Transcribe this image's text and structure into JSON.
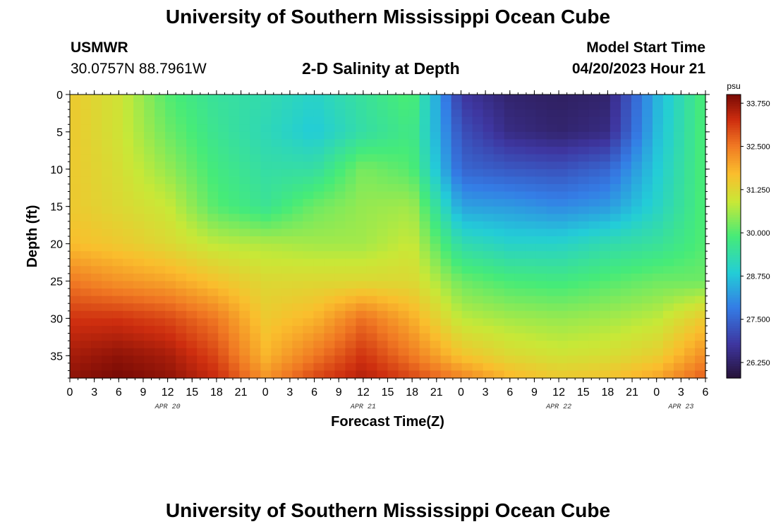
{
  "header": {
    "title": "University of Southern Mississippi Ocean Cube",
    "station": "USMWR",
    "coords": "30.0757N  88.7961W",
    "subtitle": "2-D Salinity at Depth",
    "model_label": "Model Start Time",
    "model_time": "04/20/2023 Hour 21"
  },
  "footer": {
    "title": "University of Southern Mississippi Ocean Cube"
  },
  "chart_data": {
    "type": "heatmap",
    "title": "2-D Salinity at Depth",
    "xlabel": "Forecast Time(Z)",
    "ylabel": "Depth (ft)",
    "colorbar_unit": "psu",
    "colorbar_ticks": [
      "33.750",
      "32.500",
      "31.250",
      "30.000",
      "28.750",
      "27.500",
      "26.250"
    ],
    "clim": [
      25.8,
      34.0
    ],
    "xlim_hours": [
      0,
      78
    ],
    "ylim": [
      0,
      38
    ],
    "x_tick_labels": [
      "0",
      "3",
      "6",
      "9",
      "12",
      "15",
      "18",
      "21",
      "0",
      "3",
      "6",
      "9",
      "12",
      "15",
      "18",
      "21",
      "0",
      "3",
      "6",
      "9",
      "12",
      "15",
      "18",
      "21",
      "0",
      "3",
      "6"
    ],
    "date_labels": [
      {
        "label": "APR 20",
        "hour": 12
      },
      {
        "label": "APR 21",
        "hour": 36
      },
      {
        "label": "APR 22",
        "hour": 60
      },
      {
        "label": "APR 23",
        "hour": 75
      }
    ],
    "y_ticks": [
      0,
      5,
      10,
      15,
      20,
      25,
      30,
      35
    ],
    "depths_ft": [
      0,
      5,
      10,
      15,
      20,
      25,
      30,
      35,
      38
    ],
    "hours": [
      0,
      6,
      12,
      18,
      24,
      30,
      36,
      42,
      48,
      54,
      60,
      66,
      72,
      78
    ],
    "salinity_psu": [
      [
        31.5,
        31.0,
        30.0,
        29.5,
        29.3,
        29.0,
        29.5,
        30.0,
        26.8,
        26.3,
        26.2,
        26.3,
        28.5,
        30.0
      ],
      [
        31.5,
        31.0,
        30.2,
        29.6,
        29.2,
        28.8,
        29.4,
        29.8,
        27.2,
        26.5,
        26.3,
        26.5,
        28.6,
        30.0
      ],
      [
        31.5,
        31.1,
        30.5,
        29.8,
        29.4,
        29.4,
        30.3,
        30.0,
        27.5,
        27.3,
        27.2,
        27.5,
        28.8,
        30.0
      ],
      [
        31.5,
        31.2,
        30.9,
        30.0,
        29.6,
        30.2,
        30.5,
        30.6,
        28.3,
        28.2,
        28.0,
        28.2,
        29.0,
        30.0
      ],
      [
        31.7,
        31.5,
        31.2,
        30.8,
        30.7,
        30.6,
        30.6,
        30.9,
        29.3,
        29.0,
        29.0,
        29.3,
        29.5,
        30.0
      ],
      [
        32.5,
        32.2,
        32.0,
        31.6,
        31.2,
        31.2,
        31.2,
        31.2,
        30.2,
        29.9,
        29.8,
        30.0,
        30.2,
        30.2
      ],
      [
        33.2,
        33.2,
        33.0,
        32.5,
        31.5,
        31.8,
        32.6,
        31.9,
        30.8,
        30.6,
        30.5,
        30.6,
        30.8,
        31.5
      ],
      [
        33.6,
        33.8,
        33.6,
        33.0,
        31.8,
        32.5,
        33.2,
        32.5,
        31.6,
        31.2,
        31.0,
        31.1,
        31.4,
        32.3
      ],
      [
        33.8,
        34.0,
        33.8,
        33.3,
        32.2,
        33.0,
        33.5,
        33.0,
        32.4,
        31.8,
        31.5,
        31.6,
        32.0,
        32.8
      ]
    ]
  }
}
